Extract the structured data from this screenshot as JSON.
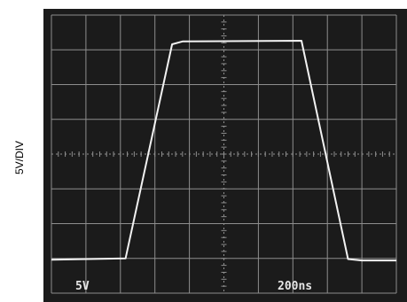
{
  "chart_data": {
    "type": "line",
    "title": "",
    "ylabel": "5V/DIV",
    "xlabel": "",
    "scale_labels": {
      "volts_per_div": "5V",
      "time_per_div": "200ns"
    },
    "grid": true,
    "x_divisions": 10,
    "y_divisions": 8,
    "x_unit": "ns",
    "y_unit": "V",
    "xlim": [
      0,
      2000
    ],
    "ylim": [
      -20,
      20
    ],
    "series": [
      {
        "points": [
          [
            0,
            -15.2
          ],
          [
            430,
            -15.0
          ],
          [
            700,
            15.8
          ],
          [
            760,
            16.2
          ],
          [
            1450,
            16.3
          ],
          [
            1720,
            -15.1
          ],
          [
            1800,
            -15.3
          ],
          [
            2000,
            -15.3
          ]
        ]
      }
    ],
    "colors": {
      "background": "#1b1b1b",
      "grid": "#8e8e8e",
      "trace": "#f2f2f2"
    }
  }
}
